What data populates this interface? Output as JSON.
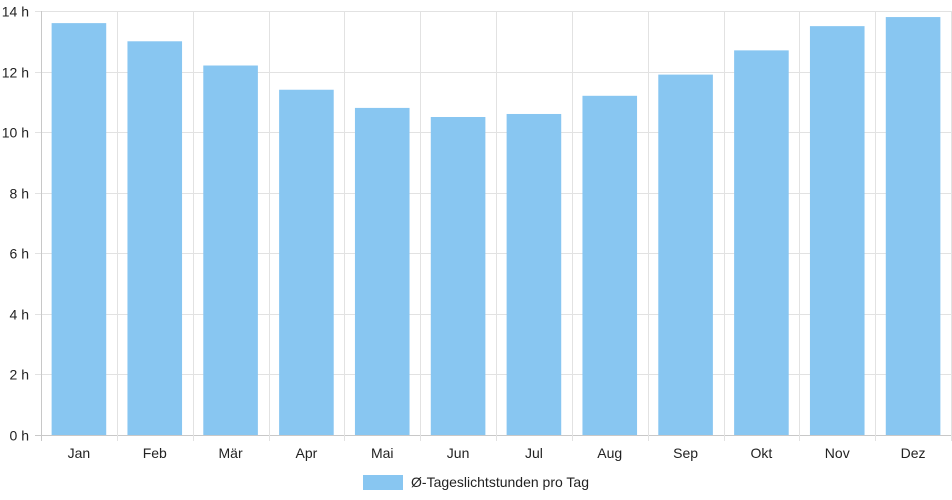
{
  "chart_data": {
    "type": "bar",
    "categories": [
      "Jan",
      "Feb",
      "Mär",
      "Apr",
      "Mai",
      "Jun",
      "Jul",
      "Aug",
      "Sep",
      "Okt",
      "Nov",
      "Dez"
    ],
    "series": [
      {
        "name": "Ø-Tageslichtstunden pro Tag",
        "values": [
          13.6,
          13.0,
          12.2,
          11.4,
          10.8,
          10.5,
          10.6,
          11.2,
          11.9,
          12.7,
          13.5,
          13.8
        ]
      }
    ],
    "yticks": [
      "0 h",
      "2 h",
      "4 h",
      "6 h",
      "8 h",
      "10 h",
      "12 h",
      "14 h"
    ],
    "ylim": [
      0,
      14
    ],
    "grid": true,
    "legend_position": "bottom",
    "bar_color": "#88c6f1",
    "grid_color": "#e2e2e2",
    "axis_color": "#c8c8c8"
  }
}
